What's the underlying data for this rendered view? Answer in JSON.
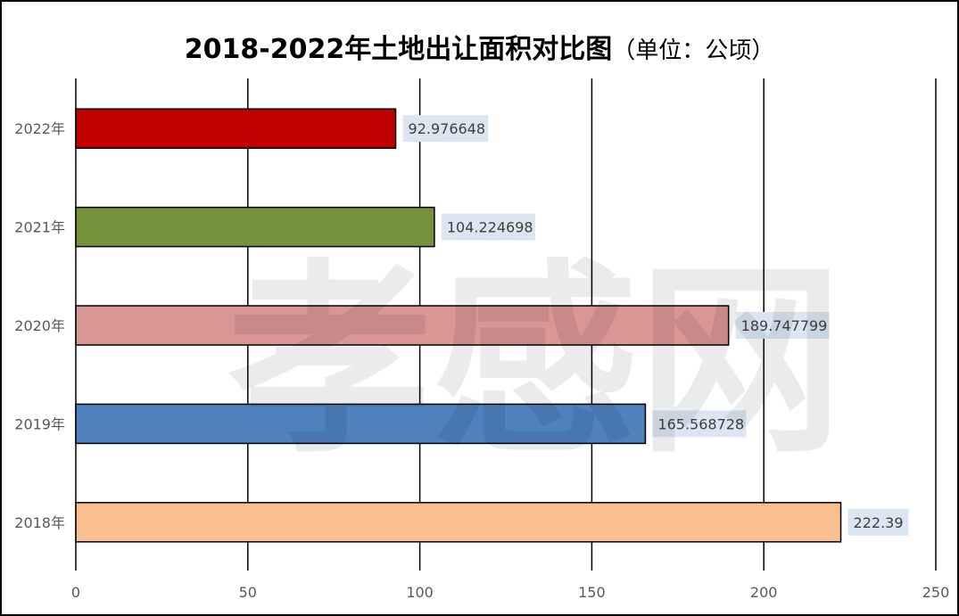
{
  "chart_data": {
    "type": "bar",
    "orientation": "horizontal",
    "title": "2018-2022年土地出让面积对比图",
    "title_unit": "（单位：公顷）",
    "categories": [
      "2022年",
      "2021年",
      "2020年",
      "2019年",
      "2018年"
    ],
    "values": [
      92.976648,
      104.224698,
      189.747799,
      165.568728,
      222.39
    ],
    "data_labels": [
      "92.976648",
      "104.224698",
      "189.747799",
      "165.568728",
      "222.39"
    ],
    "colors": [
      "#C00000",
      "#76923C",
      "#DA9694",
      "#4F81BD",
      "#FABF8F"
    ],
    "xlim": [
      0,
      250
    ],
    "x_ticks": [
      0,
      50,
      100,
      150,
      200,
      250
    ],
    "gridlines": true,
    "legend": "none",
    "label_background": "#DCE6F2",
    "watermark": "孝感网"
  }
}
